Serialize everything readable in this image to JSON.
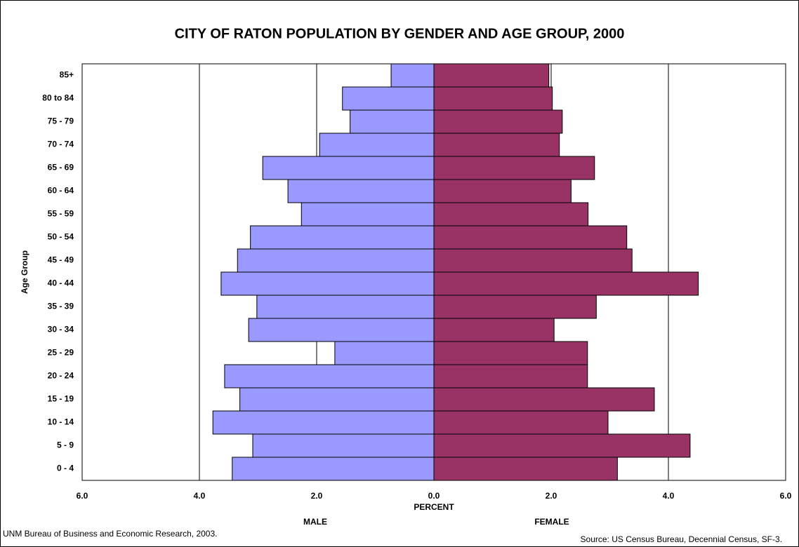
{
  "chart_data": {
    "type": "pyramid",
    "title": "CITY OF RATON POPULATION BY GENDER AND AGE GROUP, 2000",
    "y_label": "Age Group",
    "x_label": "PERCENT",
    "source_left": "UNM Bureau of Business and Economic Research, 2003.",
    "source_right": "Source:  US Census Bureau, Decennial Census, SF-3.",
    "categories": [
      "0 - 4",
      "5 - 9",
      "10 - 14",
      "15 - 19",
      "20 - 24",
      "25 - 29",
      "30 - 34",
      "35 - 39",
      "40 - 44",
      "45 - 49",
      "50 - 54",
      "55 - 59",
      "60 - 64",
      "65 - 69",
      "70 - 74",
      "75 - 79",
      "80 to 84",
      "85+"
    ],
    "series": [
      {
        "name": "MALE",
        "color": "#9999ff",
        "values": [
          -3.44,
          -3.09,
          -3.77,
          -3.31,
          -3.57,
          -1.69,
          -3.16,
          -3.02,
          -3.63,
          -3.35,
          -3.13,
          -2.26,
          -2.49,
          -2.92,
          -1.95,
          -1.43,
          -1.56,
          -0.73
        ]
      },
      {
        "name": "FEMALE",
        "color": "#993366",
        "values": [
          3.13,
          4.37,
          2.97,
          3.76,
          2.62,
          2.62,
          2.05,
          2.77,
          4.51,
          3.38,
          3.29,
          2.63,
          2.34,
          2.74,
          2.14,
          2.19,
          2.02,
          1.96
        ]
      }
    ],
    "xlim": [
      -6,
      6
    ],
    "xticks": [
      {
        "value": -6,
        "label": "6.0"
      },
      {
        "value": -4,
        "label": "4.0"
      },
      {
        "value": -2,
        "label": "2.0"
      },
      {
        "value": 0,
        "label": "0.0"
      },
      {
        "value": 2,
        "label": "2.0"
      },
      {
        "value": 4,
        "label": "4.0"
      },
      {
        "value": 6,
        "label": "6.0"
      }
    ],
    "grid": true
  }
}
